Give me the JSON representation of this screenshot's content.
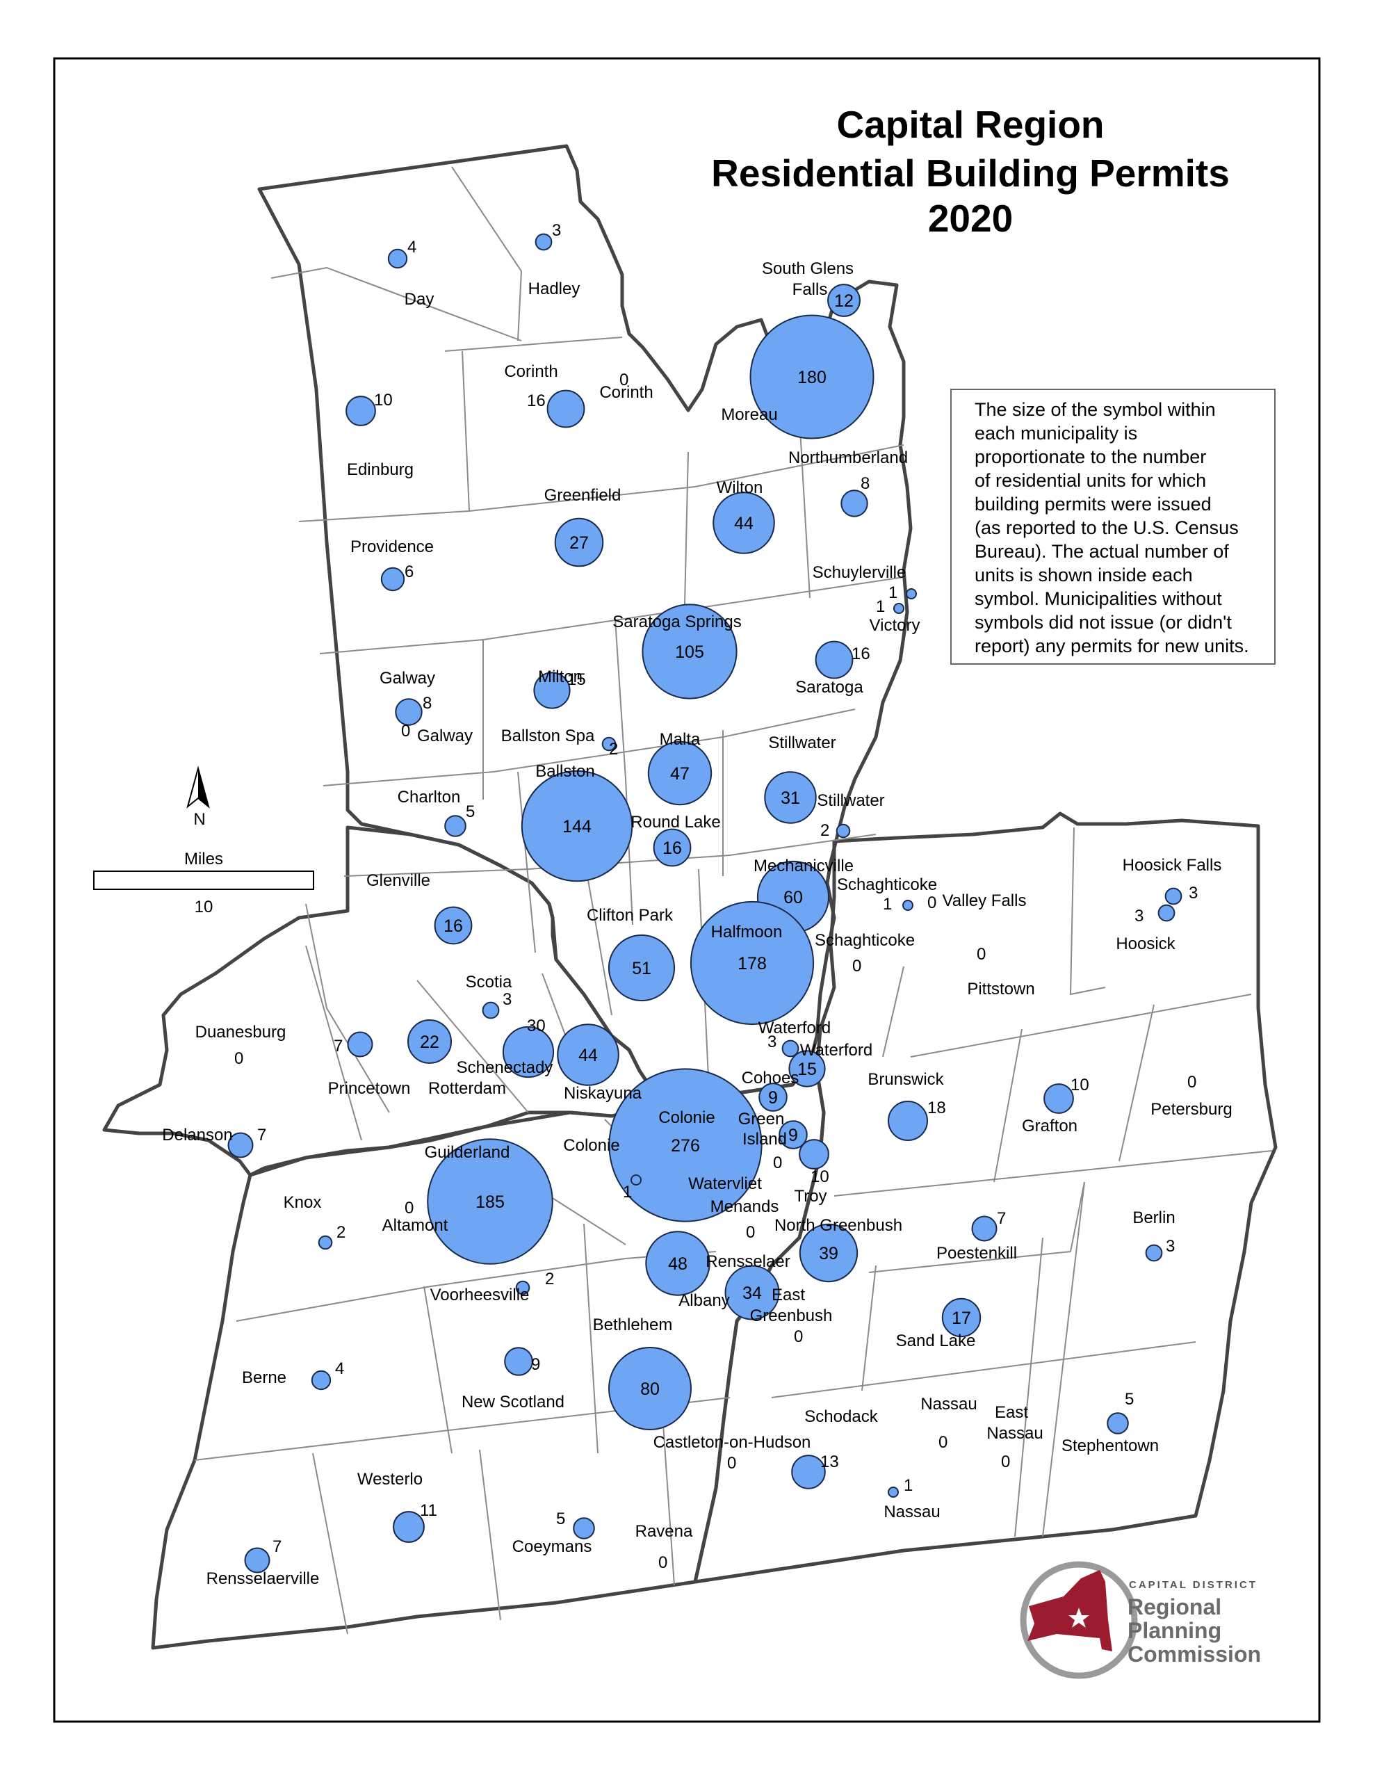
{
  "title": [
    "Capital Region",
    "Residential Building Permits",
    "2020"
  ],
  "legend_text": [
    "The size of the symbol within",
    "each municipality is",
    "proportionate to the number",
    "of residential units for which",
    "building permits were issued",
    "(as reported to the U.S. Census",
    "Bureau). The actual number of",
    "units is shown inside each",
    "symbol. Municipalities without",
    "symbols did not issue (or didn't",
    "report) any permits for new units."
  ],
  "north_label": "N",
  "scale": {
    "unit": "Miles",
    "value": "10"
  },
  "logo": {
    "top": "CAPITAL DISTRICT",
    "lines": [
      "Regional",
      "Planning",
      "Commission"
    ]
  },
  "colors": {
    "symbol_fill": "#6ea6f3",
    "symbol_stroke": "#1b2a4a",
    "logo_state": "#9b1c2e",
    "logo_text": "#6b6b6b"
  },
  "municipalities": [
    {
      "name": "Day",
      "value": 4
    },
    {
      "name": "Hadley",
      "value": 3
    },
    {
      "name": "South Glens Falls",
      "value": 12
    },
    {
      "name": "Moreau",
      "value": 180
    },
    {
      "name": "Corinth (town)",
      "value": 16
    },
    {
      "name": "Corinth (village)",
      "value": 0
    },
    {
      "name": "Edinburg",
      "value": 10
    },
    {
      "name": "Greenfield",
      "value": 27
    },
    {
      "name": "Wilton",
      "value": 44
    },
    {
      "name": "Northumberland",
      "value": 8
    },
    {
      "name": "Providence",
      "value": 6
    },
    {
      "name": "Schuylerville",
      "value": 1
    },
    {
      "name": "Victory",
      "value": 1
    },
    {
      "name": "Saratoga Springs",
      "value": 105
    },
    {
      "name": "Saratoga",
      "value": 16
    },
    {
      "name": "Milton",
      "value": 15
    },
    {
      "name": "Galway (town)",
      "value": 8
    },
    {
      "name": "Galway (village)",
      "value": 0
    },
    {
      "name": "Ballston Spa",
      "value": 2
    },
    {
      "name": "Malta",
      "value": 47
    },
    {
      "name": "Stillwater (town)",
      "value": 31
    },
    {
      "name": "Stillwater (village)",
      "value": 2
    },
    {
      "name": "Charlton",
      "value": 5
    },
    {
      "name": "Ballston",
      "value": 144
    },
    {
      "name": "Round Lake",
      "value": 16
    },
    {
      "name": "Mechanicville",
      "value": 60
    },
    {
      "name": "Schaghticoke (village)",
      "value": 1
    },
    {
      "name": "Valley Falls",
      "value": 0
    },
    {
      "name": "Schaghticoke (town)",
      "value": 0
    },
    {
      "name": "Pittstown",
      "value": 0
    },
    {
      "name": "Hoosick Falls",
      "value": 3
    },
    {
      "name": "Hoosick",
      "value": 3
    },
    {
      "name": "Glenville",
      "value": 16
    },
    {
      "name": "Clifton Park",
      "value": 51
    },
    {
      "name": "Halfmoon",
      "value": 178
    },
    {
      "name": "Scotia",
      "value": 3
    },
    {
      "name": "Duanesburg",
      "value": 0
    },
    {
      "name": "Princetown",
      "value": 7
    },
    {
      "name": "Rotterdam",
      "value": 22
    },
    {
      "name": "Schenectady",
      "value": 30
    },
    {
      "name": "Niskayuna",
      "value": 44
    },
    {
      "name": "Waterford (village)",
      "value": 3
    },
    {
      "name": "Waterford (town)",
      "value": 15
    },
    {
      "name": "Cohoes",
      "value": 9
    },
    {
      "name": "Brunswick",
      "value": 18
    },
    {
      "name": "Grafton",
      "value": 10
    },
    {
      "name": "Petersburg",
      "value": 0
    },
    {
      "name": "Delanson",
      "value": 7
    },
    {
      "name": "Colonie (town)",
      "value": 276
    },
    {
      "name": "Colonie (village)",
      "value": 1
    },
    {
      "name": "Green Island",
      "value": 9
    },
    {
      "name": "Watervliet",
      "value": 0
    },
    {
      "name": "Troy",
      "value": 10
    },
    {
      "name": "Guilderland",
      "value": 185
    },
    {
      "name": "Knox",
      "value": 2
    },
    {
      "name": "Altamont",
      "value": 0
    },
    {
      "name": "Menands",
      "value": 0
    },
    {
      "name": "North Greenbush",
      "value": 39
    },
    {
      "name": "Poestenkill",
      "value": 7
    },
    {
      "name": "Berlin",
      "value": 3
    },
    {
      "name": "Albany",
      "value": 48
    },
    {
      "name": "Rensselaer",
      "value": 34
    },
    {
      "name": "East Greenbush",
      "value": 0
    },
    {
      "name": "Voorheesville",
      "value": 2
    },
    {
      "name": "Bethlehem",
      "value": 80
    },
    {
      "name": "Sand Lake",
      "value": 17
    },
    {
      "name": "Berne",
      "value": 4
    },
    {
      "name": "New Scotland",
      "value": 9
    },
    {
      "name": "Schodack",
      "value": 13
    },
    {
      "name": "Castleton-on-Hudson",
      "value": 0
    },
    {
      "name": "Nassau (town)",
      "value": 0
    },
    {
      "name": "Nassau (village)",
      "value": 1
    },
    {
      "name": "East Nassau",
      "value": 0
    },
    {
      "name": "Stephentown",
      "value": 5
    },
    {
      "name": "Westerlo",
      "value": 11
    },
    {
      "name": "Coeymans",
      "value": 5
    },
    {
      "name": "Ravena",
      "value": 0
    },
    {
      "name": "Rensselaerville",
      "value": 7
    }
  ],
  "labels": {
    "day": "Day",
    "hadley": "Hadley",
    "sgf1": "South Glens",
    "sgf2": "Falls",
    "moreau": "Moreau",
    "corinth_town": "Corinth",
    "corinth_vil": "Corinth",
    "edinburg": "Edinburg",
    "greenfield": "Greenfield",
    "wilton": "Wilton",
    "northumberland": "Northumberland",
    "providence": "Providence",
    "schuylerville": "Schuylerville",
    "victory": "Victory",
    "saratoga_springs": "Saratoga Springs",
    "saratoga": "Saratoga",
    "milton": "Milton",
    "galway_town": "Galway",
    "galway_vil": "Galway",
    "ballston_spa": "Ballston Spa",
    "malta": "Malta",
    "stillwater_town": "Stillwater",
    "stillwater_vil": "Stillwater",
    "charlton": "Charlton",
    "ballston": "Ballston",
    "round_lake": "Round Lake",
    "mechanicville": "Mechanicville",
    "schaghticoke_vil": "Schaghticoke",
    "valley_falls": "Valley Falls",
    "schaghticoke_town": "Schaghticoke",
    "pittstown": "Pittstown",
    "hoosick_falls": "Hoosick Falls",
    "hoosick": "Hoosick",
    "glenville": "Glenville",
    "clifton_park": "Clifton Park",
    "halfmoon": "Halfmoon",
    "scotia": "Scotia",
    "duanesburg": "Duanesburg",
    "princetown": "Princetown",
    "rotterdam": "Rotterdam",
    "schenectady": "Schenectady",
    "niskayuna": "Niskayuna",
    "waterford_vil": "Waterford",
    "waterford_town": "Waterford",
    "cohoes": "Cohoes",
    "brunswick": "Brunswick",
    "grafton": "Grafton",
    "petersburg": "Petersburg",
    "delanson": "Delanson",
    "colonie_town": "Colonie",
    "colonie_vil": "Colonie",
    "green": "Green",
    "island": "Island",
    "watervliet": "Watervliet",
    "troy": "Troy",
    "guilderland": "Guilderland",
    "knox": "Knox",
    "altamont": "Altamont",
    "menands": "Menands",
    "north_greenbush": "North Greenbush",
    "poestenkill": "Poestenkill",
    "berlin": "Berlin",
    "albany": "Albany",
    "rensselaer": "Rensselaer",
    "east": "East",
    "greenbush": "Greenbush",
    "voorheesville": "Voorheesville",
    "bethlehem": "Bethlehem",
    "sand_lake": "Sand Lake",
    "berne": "Berne",
    "new_scotland": "New Scotland",
    "schodack": "Schodack",
    "castleton": "Castleton-on-Hudson",
    "nassau_town": "Nassau",
    "east_nassau1": "East",
    "east_nassau2": "Nassau",
    "nassau_vil": "Nassau",
    "stephentown": "Stephentown",
    "westerlo": "Westerlo",
    "coeymans": "Coeymans",
    "ravena": "Ravena",
    "rensselaerville": "Rensselaerville"
  }
}
